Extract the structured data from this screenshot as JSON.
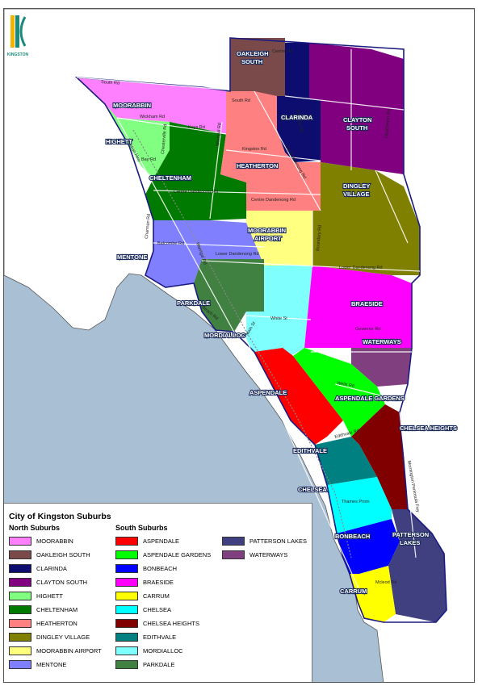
{
  "legend": {
    "title": "City of Kingston Suburbs",
    "north_heading": "North Suburbs",
    "south_heading": "South Suburbs",
    "north": [
      {
        "label": "MOORABBIN",
        "color": "#ff80ff"
      },
      {
        "label": "OAKLEIGH SOUTH",
        "color": "#7a4a4a"
      },
      {
        "label": "CLARINDA",
        "color": "#0d0d70"
      },
      {
        "label": "CLAYTON SOUTH",
        "color": "#800080"
      },
      {
        "label": "HIGHETT",
        "color": "#80ff80"
      },
      {
        "label": "CHELTENHAM",
        "color": "#007a00"
      },
      {
        "label": "HEATHERTON",
        "color": "#ff8080"
      },
      {
        "label": "DINGLEY VILLAGE",
        "color": "#808000"
      },
      {
        "label": "MOORABBIN AIRPORT",
        "color": "#ffff80"
      },
      {
        "label": "MENTONE",
        "color": "#8080ff"
      }
    ],
    "south_a": [
      {
        "label": "ASPENDALE",
        "color": "#ff0000"
      },
      {
        "label": "ASPENDALE GARDENS",
        "color": "#00ff00"
      },
      {
        "label": "BONBEACH",
        "color": "#0000ff"
      },
      {
        "label": "BRAESIDE",
        "color": "#ff00ff"
      },
      {
        "label": "CARRUM",
        "color": "#ffff00"
      },
      {
        "label": "CHELSEA",
        "color": "#00ffff"
      },
      {
        "label": "CHELSEA HEIGHTS",
        "color": "#800000"
      },
      {
        "label": "EDITHVALE",
        "color": "#008080"
      },
      {
        "label": "MORDIALLOC",
        "color": "#80ffff"
      },
      {
        "label": "PARKDALE",
        "color": "#408040"
      }
    ],
    "south_b": [
      {
        "label": "PATTERSON LAKES",
        "color": "#404080"
      },
      {
        "label": "WATERWAYS",
        "color": "#804080"
      }
    ]
  },
  "map_labels": {
    "moorabbin": "MOORABBIN",
    "oakleigh_1": "OAKLEIGH",
    "oakleigh_2": "SOUTH",
    "clarinda": "CLARINDA",
    "clayton_1": "CLAYTON",
    "clayton_2": "SOUTH",
    "highett": "HIGHETT",
    "cheltenham": "CHELTENHAM",
    "heatherton": "HEATHERTON",
    "dingley_1": "DINGLEY",
    "dingley_2": "VILLAGE",
    "airport_1": "MOORABBIN",
    "airport_2": "AIRPORT",
    "mentone": "MENTONE",
    "parkdale": "PARKDALE",
    "mordialloc": "MORDIALLOC",
    "braeside": "BRAESIDE",
    "waterways": "WATERWAYS",
    "aspendale": "ASPENDALE",
    "aspendale_gardens": "ASPENDALE GARDENS",
    "chelsea_heights": "CHELSEA HEIGHTS",
    "edithvale": "EDITHVALE",
    "chelsea": "CHELSEA",
    "bonbeach": "BONBEACH",
    "patterson_1": "PATTERSON",
    "patterson_2": "LAKES",
    "carrum": "CARRUM"
  },
  "roads": {
    "centre_rd": "Centre Rd",
    "south_rd_w": "South Rd",
    "south_rd_e": "South Rd",
    "wickham_rd": "Wickham Rd",
    "keys_rd": "Keys Rd",
    "bay_rd": "Bay Rd",
    "kingston_rd": "Kingston Rd",
    "old_dandenong": "Old Dandenong Rd",
    "centre_dandenong": "Centre Dandenong Rd",
    "centre_dandenong_e": "Centre Dandenong Rd",
    "balcombe_rd": "Balcombe Rd",
    "lower_dandenong": "Lower Dandenong Rd",
    "lower_dandenong_e": "Lower Dandenong Rd",
    "white_st": "White St",
    "governor_rd": "Governor Rd",
    "wells_rd": "Wells Rd",
    "thames_prom": "Thames Prom",
    "mcleod_rd": "Mcleod Rd",
    "edithvale_rd": "Edithvale Rd",
    "boundary_rd": "Boundary Rd",
    "warrigal_rd": "Warrigal Rd",
    "chesterville_rd": "Chesterville Rd",
    "nepean_hwy": "Nepean Hwy",
    "charman_rd": "Charman Rd",
    "warrigal_rd_s": "Warrigal Rd",
    "beach_rd": "Beach Rd",
    "main_st": "Main St",
    "clarinda_rd": "Clarinda Rd",
    "mornington_fwy": "Mornington Peninsula Fwy",
    "heatherton_rd": "Heatherton Rd"
  },
  "logo": {
    "text": "KINGSTON",
    "color": "#1a8a7a"
  }
}
